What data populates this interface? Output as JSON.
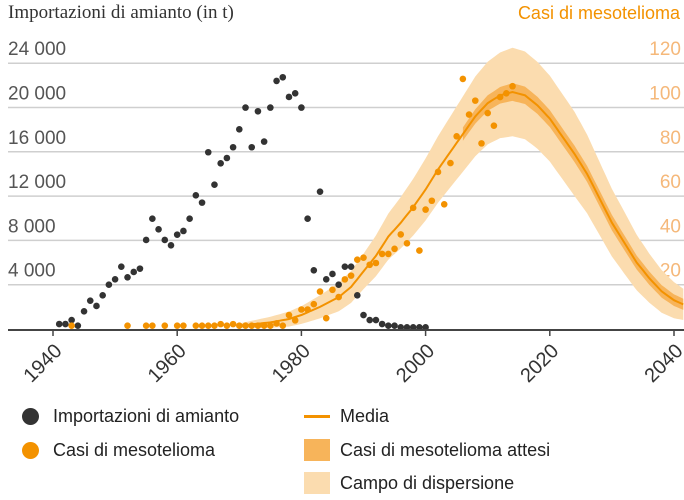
{
  "chart_data": {
    "type": "scatter",
    "title_left": "Importazioni di amianto (in t)",
    "title_right": "Casi di mesotelioma",
    "x_ticks": [
      1940,
      1960,
      1980,
      2000,
      2020,
      2040
    ],
    "xlim": [
      1933,
      2041.6
    ],
    "y_left": {
      "ticks": [
        4000,
        8000,
        12000,
        16000,
        20000,
        24000
      ],
      "tick_labels": [
        "4 000",
        "8 000",
        "12 000",
        "16 000",
        "20 000",
        "24 000"
      ],
      "lim": [
        0,
        26000
      ]
    },
    "y_right": {
      "ticks": [
        20,
        40,
        60,
        80,
        100,
        120
      ],
      "tick_labels": [
        "20",
        "40",
        "60",
        "80",
        "100",
        "120"
      ],
      "lim": [
        0,
        130
      ]
    },
    "grid": true,
    "colors": {
      "imports": "#333333",
      "cases": "#f39200",
      "media": "#f39200",
      "expected": "#f7b45a",
      "dispersion": "#fbdcaf",
      "right_ticks": "#f5b87a"
    },
    "series": [
      {
        "name": "Importazioni di amianto",
        "axis": "left",
        "points": [
          [
            1941,
            450
          ],
          [
            1942,
            450
          ],
          [
            1943,
            810
          ],
          [
            1944,
            300
          ],
          [
            1945,
            1600
          ],
          [
            1946,
            2560
          ],
          [
            1947,
            2080
          ],
          [
            1948,
            3040
          ],
          [
            1949,
            4000
          ],
          [
            1950,
            4490
          ],
          [
            1951,
            5630
          ],
          [
            1952,
            4670
          ],
          [
            1953,
            5150
          ],
          [
            1954,
            5450
          ],
          [
            1955,
            8040
          ],
          [
            1956,
            9960
          ],
          [
            1957,
            9000
          ],
          [
            1958,
            8040
          ],
          [
            1959,
            7560
          ],
          [
            1960,
            8520
          ],
          [
            1961,
            8850
          ],
          [
            1962,
            9960
          ],
          [
            1963,
            12070
          ],
          [
            1964,
            11410
          ],
          [
            1965,
            15960
          ],
          [
            1966,
            13030
          ],
          [
            1967,
            14960
          ],
          [
            1968,
            15440
          ],
          [
            1969,
            16410
          ],
          [
            1970,
            18030
          ],
          [
            1971,
            19990
          ],
          [
            1972,
            16410
          ],
          [
            1973,
            19660
          ],
          [
            1974,
            16920
          ],
          [
            1975,
            19990
          ],
          [
            1976,
            22400
          ],
          [
            1977,
            22730
          ],
          [
            1978,
            20950
          ],
          [
            1979,
            21280
          ],
          [
            1980,
            19990
          ],
          [
            1981,
            9960
          ],
          [
            1982,
            5300
          ],
          [
            1983,
            12400
          ],
          [
            1984,
            4490
          ],
          [
            1985,
            4970
          ],
          [
            1986,
            4000
          ],
          [
            1987,
            5630
          ],
          [
            1988,
            5630
          ],
          [
            1989,
            3040
          ],
          [
            1990,
            1260
          ],
          [
            1991,
            810
          ],
          [
            1992,
            810
          ],
          [
            1993,
            450
          ],
          [
            1994,
            300
          ],
          [
            1995,
            300
          ],
          [
            1996,
            150
          ],
          [
            1997,
            150
          ],
          [
            1998,
            150
          ],
          [
            1999,
            150
          ],
          [
            2000,
            150
          ]
        ]
      },
      {
        "name": "Casi di mesotelioma",
        "axis": "right",
        "points": [
          [
            1943,
            1.5
          ],
          [
            1952,
            1.5
          ],
          [
            1955,
            1.5
          ],
          [
            1956,
            1.5
          ],
          [
            1958,
            1.5
          ],
          [
            1960,
            1.5
          ],
          [
            1961,
            1.5
          ],
          [
            1963,
            1.5
          ],
          [
            1964,
            1.5
          ],
          [
            1965,
            1.5
          ],
          [
            1966,
            1.5
          ],
          [
            1967,
            2.2
          ],
          [
            1968,
            1.5
          ],
          [
            1969,
            2.2
          ],
          [
            1970,
            1.5
          ],
          [
            1971,
            1.5
          ],
          [
            1972,
            1.5
          ],
          [
            1973,
            1.5
          ],
          [
            1974,
            1.5
          ],
          [
            1975,
            1.5
          ],
          [
            1976,
            2.5
          ],
          [
            1977,
            1.5
          ],
          [
            1978,
            6.3
          ],
          [
            1979,
            3.9
          ],
          [
            1980,
            8.8
          ],
          [
            1981,
            8.8
          ],
          [
            1982,
            11.2
          ],
          [
            1983,
            16.9
          ],
          [
            1984,
            4.9
          ],
          [
            1985,
            17.7
          ],
          [
            1986,
            14.4
          ],
          [
            1987,
            22.4
          ],
          [
            1988,
            24.1
          ],
          [
            1989,
            31.3
          ],
          [
            1990,
            32.2
          ],
          [
            1991,
            29
          ],
          [
            1992,
            29.8
          ],
          [
            1993,
            33.9
          ],
          [
            1994,
            33.9
          ],
          [
            1995,
            36.2
          ],
          [
            1996,
            42.7
          ],
          [
            1997,
            38.7
          ],
          [
            1998,
            54.7
          ],
          [
            1999,
            35.4
          ],
          [
            2000,
            53.9
          ],
          [
            2001,
            57.9
          ],
          [
            2002,
            70.9
          ],
          [
            2003,
            56.3
          ],
          [
            2004,
            74.9
          ],
          [
            2005,
            87
          ],
          [
            2006,
            112.9
          ],
          [
            2007,
            96.8
          ],
          [
            2008,
            103.1
          ],
          [
            2009,
            83.8
          ],
          [
            2010,
            97.5
          ],
          [
            2011,
            91.8
          ],
          [
            2012,
            104.7
          ],
          [
            2013,
            106.4
          ],
          [
            2014,
            109.6
          ]
        ]
      },
      {
        "name": "Media",
        "axis": "right",
        "type": "line",
        "points": [
          [
            1970,
            1.5
          ],
          [
            1975,
            3
          ],
          [
            1978,
            4.5
          ],
          [
            1980,
            6.3
          ],
          [
            1983,
            10
          ],
          [
            1986,
            14.4
          ],
          [
            1988,
            19
          ],
          [
            1990,
            26
          ],
          [
            1992,
            33
          ],
          [
            1994,
            41.7
          ],
          [
            1996,
            48
          ],
          [
            1998,
            55
          ],
          [
            2000,
            63
          ],
          [
            2002,
            72
          ],
          [
            2004,
            80
          ],
          [
            2006,
            88
          ],
          [
            2008,
            96
          ],
          [
            2010,
            102
          ],
          [
            2012,
            105.5
          ],
          [
            2014,
            107
          ],
          [
            2016,
            105.5
          ],
          [
            2018,
            101
          ],
          [
            2020,
            95
          ],
          [
            2022,
            87
          ],
          [
            2024,
            79
          ],
          [
            2026,
            70
          ],
          [
            2028,
            59
          ],
          [
            2030,
            48
          ],
          [
            2032,
            39
          ],
          [
            2034,
            30
          ],
          [
            2036,
            23
          ],
          [
            2038,
            17
          ],
          [
            2040,
            13
          ],
          [
            2041.6,
            11
          ]
        ]
      },
      {
        "name": "Casi di mesotelioma attesi",
        "axis": "right",
        "type": "band",
        "halfwidth": [
          [
            2006,
            3
          ],
          [
            2014,
            4
          ],
          [
            2030,
            3.5
          ],
          [
            2041.6,
            2.5
          ]
        ]
      },
      {
        "name": "Campo di dispersione",
        "axis": "right",
        "type": "band",
        "halfwidth": [
          [
            1970,
            1
          ],
          [
            1980,
            4
          ],
          [
            1990,
            8
          ],
          [
            2000,
            14
          ],
          [
            2008,
            18
          ],
          [
            2014,
            20
          ],
          [
            2024,
            19
          ],
          [
            2032,
            14
          ],
          [
            2041.6,
            7
          ]
        ]
      }
    ],
    "legend": {
      "position": "bottom",
      "items": [
        "Importazioni di amianto",
        "Casi di mesotelioma",
        "Media",
        "Casi di mesotelioma attesi",
        "Campo di dispersione"
      ]
    }
  }
}
